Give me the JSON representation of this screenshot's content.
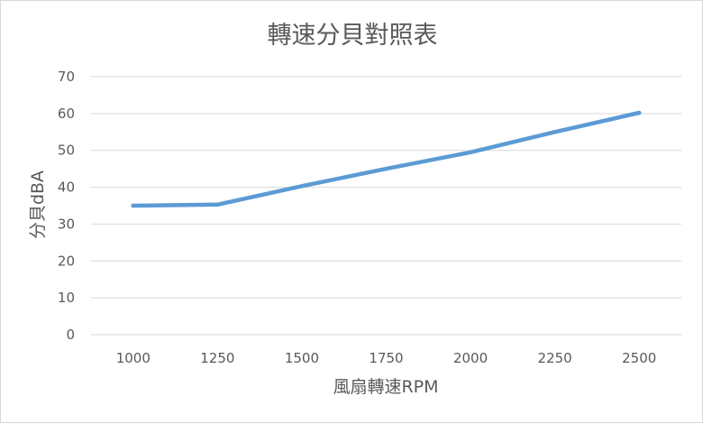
{
  "chart_data": {
    "type": "line",
    "title": "轉速分貝對照表",
    "xlabel": "風扇轉速RPM",
    "ylabel": "分貝dBA",
    "categories": [
      "1000",
      "1250",
      "1500",
      "1750",
      "2000",
      "2250",
      "2500"
    ],
    "series": [
      {
        "values": [
          35,
          35.3,
          40.3,
          45,
          49.5,
          55,
          60.2
        ]
      }
    ],
    "ylim": [
      0,
      70
    ],
    "yticks": [
      0,
      10,
      20,
      30,
      40,
      50,
      60,
      70
    ],
    "grid": true,
    "line_color": "#5b9bd5",
    "grid_color": "#d9d9d9"
  }
}
